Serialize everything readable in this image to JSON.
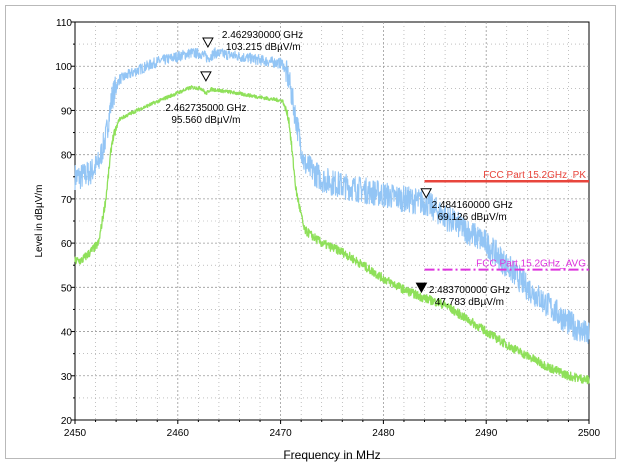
{
  "chart_data": {
    "type": "line",
    "xlabel": "Frequency in MHz",
    "ylabel": "Level in dBµV/m",
    "xlim": [
      2450,
      2500
    ],
    "ylim": [
      20,
      110
    ],
    "x_ticks": [
      "2450",
      "2460",
      "2470",
      "2480",
      "2490",
      "2500"
    ],
    "y_ticks": [
      "20",
      "30",
      "40",
      "50",
      "60",
      "70",
      "80",
      "90",
      "100",
      "110"
    ],
    "grid": true,
    "series": [
      {
        "color": "#93c5f5",
        "noise": 3,
        "x": [
          2450,
          2450.6,
          2451.5,
          2452.3,
          2453,
          2453.6,
          2454.3,
          2456,
          2458,
          2460,
          2461.3,
          2462.3,
          2462.93,
          2463.6,
          2465,
          2467,
          2469,
          2470.2,
          2470.8,
          2471.5,
          2472.3,
          2474,
          2476,
          2478,
          2480,
          2482,
          2484.16,
          2486,
          2488,
          2490,
          2492,
          2494,
          2496,
          2498,
          2500
        ],
        "y": [
          75,
          75,
          76,
          78,
          84,
          93,
          97,
          99,
          101,
          102.2,
          103,
          102.8,
          101.8,
          103,
          102.6,
          101.8,
          101,
          100.6,
          97,
          88,
          78,
          74.5,
          73,
          72,
          71,
          70,
          69.1,
          66,
          63,
          60,
          55,
          50,
          46,
          42,
          39
        ]
      },
      {
        "color": "#8fe05a",
        "noise": 1,
        "x": [
          2450,
          2450.6,
          2451.5,
          2452.3,
          2453,
          2453.6,
          2454.3,
          2456,
          2458,
          2460,
          2461.3,
          2462.3,
          2462.74,
          2463.2,
          2465,
          2467,
          2469,
          2470.2,
          2470.8,
          2471.5,
          2472.3,
          2474,
          2476,
          2478,
          2480,
          2482,
          2483.7,
          2486,
          2488,
          2490,
          2492,
          2494,
          2496,
          2498,
          2500
        ],
        "y": [
          56,
          56,
          58,
          60,
          70,
          83,
          88,
          90,
          92,
          94,
          95.2,
          95,
          93.8,
          94.8,
          94.2,
          93.4,
          92.6,
          92.2,
          88,
          72,
          63,
          60,
          58,
          55,
          52,
          49.5,
          47.8,
          46,
          43,
          40,
          37,
          34.5,
          32,
          30,
          29
        ]
      }
    ],
    "limit_lines": [
      {
        "label": "FCC Part 15.2GHz_PK",
        "y": 74,
        "x_start": 2484,
        "x_end": 2500,
        "color": "#e8453c",
        "dashed": false
      },
      {
        "label": "FCC Part 15.2GHz_AVG",
        "y": 54,
        "x_start": 2484,
        "x_end": 2500,
        "color": "#dd33dd",
        "dashed": true
      }
    ],
    "markers": [
      {
        "x": 2462.93,
        "y": 103.215,
        "freq": "2.462930000 GHz",
        "level": "103.215 dBµV/m",
        "filled": false
      },
      {
        "x": 2462.735,
        "y": 95.56,
        "freq": "2.462735000 GHz",
        "level": "95.560 dBµV/m",
        "filled": false
      },
      {
        "x": 2484.16,
        "y": 69.126,
        "freq": "2.484160000 GHz",
        "level": "69.126 dBµV/m",
        "filled": false
      },
      {
        "x": 2483.7,
        "y": 47.783,
        "freq": "2.483700000 GHz",
        "level": "47.783 dBµV/m",
        "filled": true
      }
    ]
  }
}
